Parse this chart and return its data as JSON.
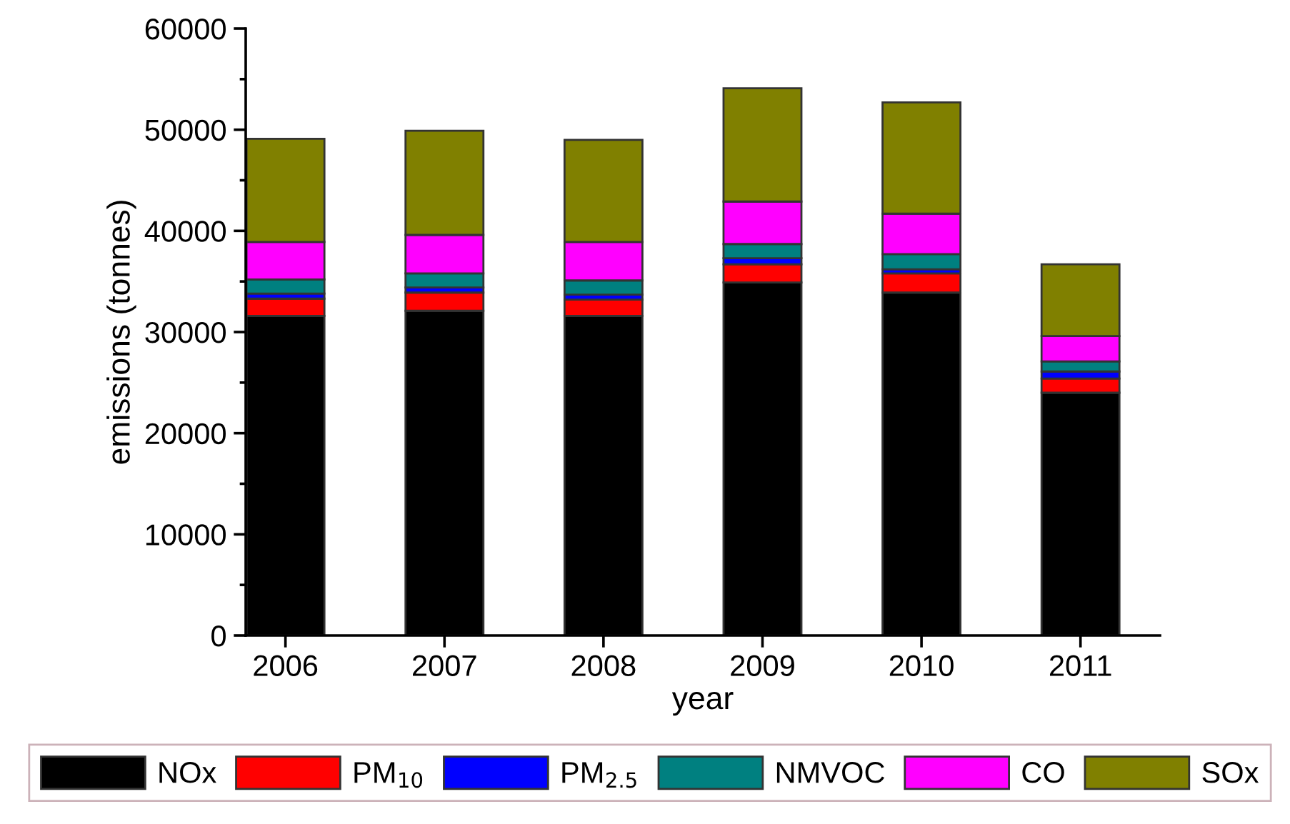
{
  "chart_data": {
    "type": "bar",
    "stacked": true,
    "xlabel": "year",
    "ylabel": "emissions (tonnes)",
    "categories": [
      "2006",
      "2007",
      "2008",
      "2009",
      "2010",
      "2011"
    ],
    "series": [
      {
        "name": "NOx",
        "color": "#000000",
        "values": [
          31600,
          32100,
          31600,
          34900,
          33900,
          24000
        ]
      },
      {
        "name": "PM$_{10}$",
        "color": "#ff0000",
        "values": [
          1700,
          1800,
          1600,
          1800,
          1900,
          1400
        ]
      },
      {
        "name": "PM$_{2.5}$",
        "color": "#0000ff",
        "values": [
          500,
          500,
          500,
          600,
          400,
          700
        ]
      },
      {
        "name": "NMVOC",
        "color": "#008080",
        "values": [
          1400,
          1400,
          1400,
          1400,
          1500,
          1000
        ]
      },
      {
        "name": "CO",
        "color": "#ff00ff",
        "values": [
          3700,
          3800,
          3800,
          4200,
          4000,
          2500
        ]
      },
      {
        "name": "SOx",
        "color": "#808000",
        "values": [
          10200,
          10300,
          10100,
          11200,
          11000,
          7100
        ]
      }
    ],
    "ylim": [
      0,
      60000
    ],
    "yticks": [
      0,
      10000,
      20000,
      30000,
      40000,
      50000,
      60000
    ],
    "grid": false,
    "legend": "bottom"
  }
}
